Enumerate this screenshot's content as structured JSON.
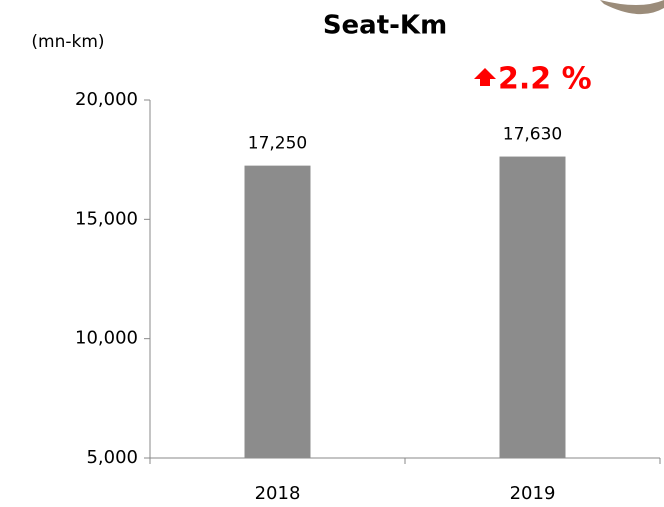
{
  "chart_data": {
    "type": "bar",
    "title": "Seat-Km",
    "y_axis_label": "(mn-km)",
    "annotation": "2.2 %",
    "categories": [
      "2018",
      "2019"
    ],
    "values": [
      17250,
      17630
    ],
    "value_labels": [
      "17,250",
      "17,630"
    ],
    "color": "#8c8c8c",
    "ylim": [
      5000,
      20000
    ],
    "yticks": [
      {
        "value": 5000,
        "label": "5,000"
      },
      {
        "value": 10000,
        "label": "10,000"
      },
      {
        "value": 15000,
        "label": "15,000"
      },
      {
        "value": 20000,
        "label": "20,000"
      }
    ],
    "grid": false
  }
}
